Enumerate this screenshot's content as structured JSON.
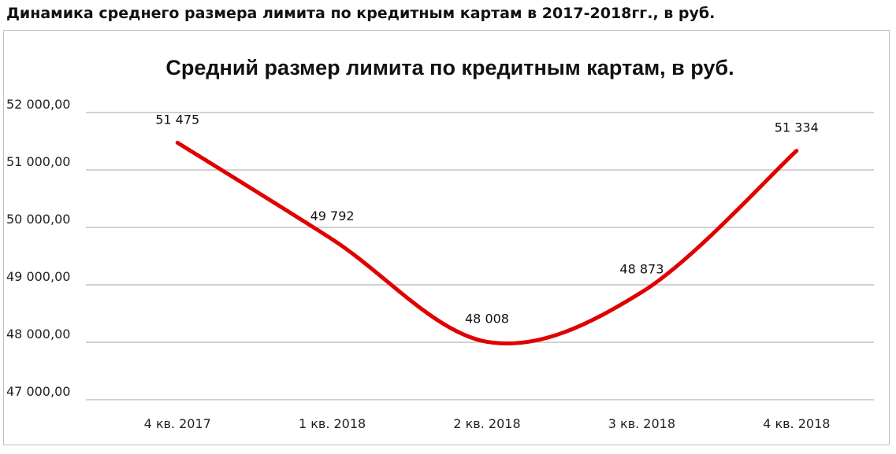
{
  "page_title": "Динамика среднего размера лимита по кредитным картам в 2017-2018гг., в руб.",
  "chart_data": {
    "type": "line",
    "title": "Средний размер лимита по кредитным картам, в руб.",
    "categories": [
      "4 кв. 2017",
      "1 кв. 2018",
      "2 кв. 2018",
      "3 кв. 2018",
      "4 кв. 2018"
    ],
    "values": [
      51475,
      49792,
      48008,
      48873,
      51334
    ],
    "data_labels": [
      "51 475",
      "49 792",
      "48 008",
      "48 873",
      "51 334"
    ],
    "y_ticks": [
      47000,
      48000,
      49000,
      50000,
      51000,
      52000
    ],
    "y_tick_labels": [
      "47 000,00",
      "48 000,00",
      "49 000,00",
      "50 000,00",
      "51 000,00",
      "52 000,00"
    ],
    "ylim": [
      47000,
      52000
    ],
    "line_color": "#e00000",
    "smooth": true,
    "grid": true,
    "legend": "none"
  }
}
